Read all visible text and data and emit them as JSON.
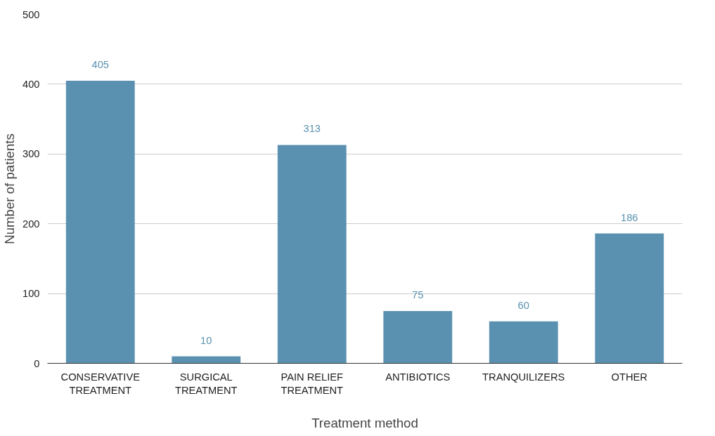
{
  "chart_data": {
    "type": "bar",
    "xlabel": "Treatment method",
    "ylabel": "Number of patients",
    "categories": [
      "CONSERVATIVE\nTREATMENT",
      "SURGICAL\nTREATMENT",
      "PAIN RELIEF\nTREATMENT",
      "ANTIBIOTICS",
      "TRANQUILIZERS",
      "OTHER"
    ],
    "values": [
      405,
      10,
      313,
      75,
      60,
      186
    ],
    "color": "#5a91b0",
    "ylim": [
      0,
      500
    ],
    "yticks": [
      0,
      100,
      200,
      300,
      400,
      500
    ],
    "grid": "y",
    "data_labels": true
  }
}
